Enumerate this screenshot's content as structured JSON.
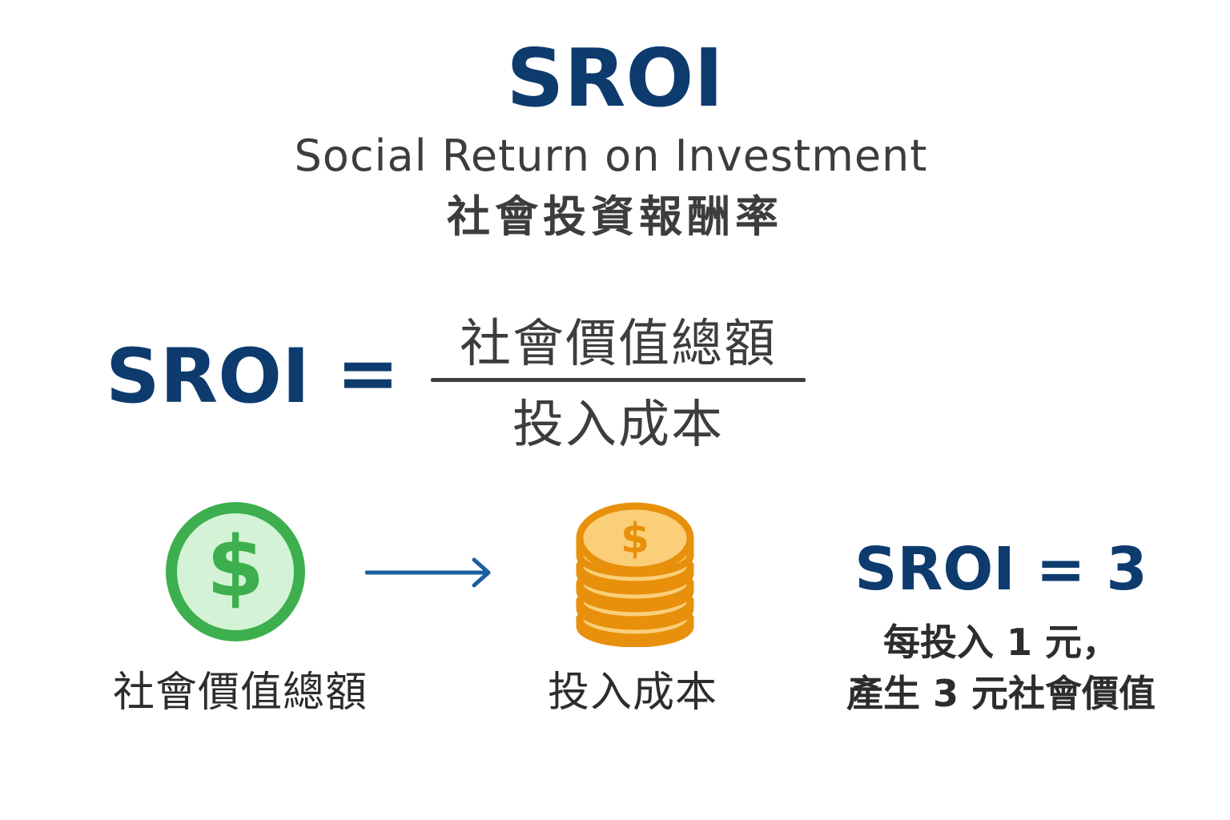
{
  "title": "SROI",
  "subtitle_en": "Social Return on Investment",
  "subtitle_zh": "社會投資報酬率",
  "formula": {
    "lhs": "SROI",
    "equals": "=",
    "numerator": "社會價值總額",
    "denominator": "投入成本"
  },
  "flow": {
    "left_icon": "dollar-circle-icon",
    "arrow_icon": "right-arrow-icon",
    "right_icon": "coin-stack-icon",
    "left_label": "社會價值總額",
    "right_label": "投入成本",
    "coin_symbol": "$",
    "dollar_symbol": "$"
  },
  "result": {
    "equation": "SROI = 3",
    "note_line1": "每投入 1 元，",
    "note_line2": "產生 3 元社會價值"
  },
  "colors": {
    "title_blue": "#0d3b6e",
    "text_gray": "#3d3d3d",
    "green": "#3daf4e",
    "green_light": "#d4f3d6",
    "orange": "#e8900b",
    "orange_light": "#fbcf79",
    "arrow_blue": "#1a5fa0"
  }
}
